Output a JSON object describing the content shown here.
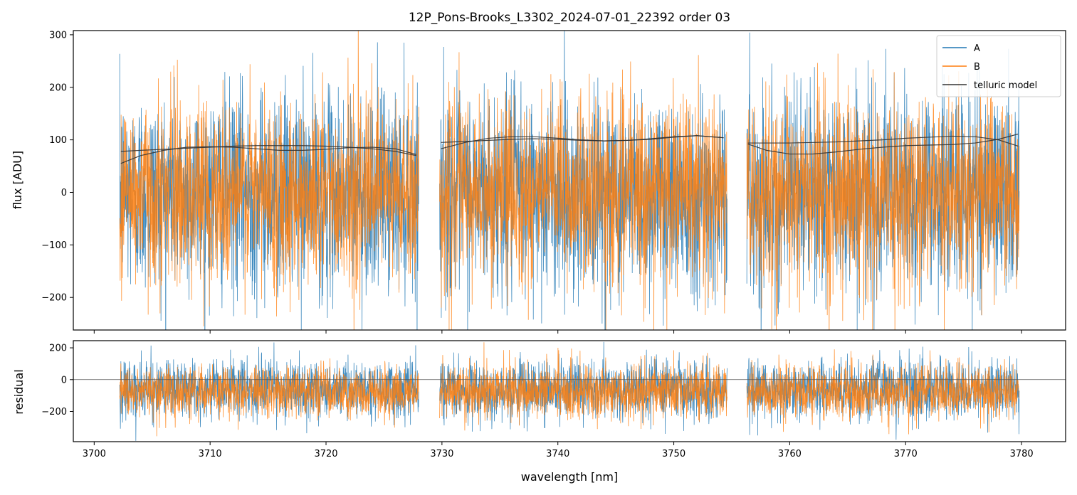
{
  "chart_data": {
    "type": "line",
    "title": "12P_Pons-Brooks_L3302_2024-07-01_22392  order 03",
    "xlabel": "wavelength [nm]",
    "xlim": [
      3698.2,
      3783.8
    ],
    "xticks": [
      3700,
      3710,
      3720,
      3730,
      3740,
      3750,
      3760,
      3770,
      3780
    ],
    "legend": {
      "position": "top-right",
      "entries": [
        "A",
        "B",
        "telluric model"
      ]
    },
    "colors": {
      "A": "#1f77b4",
      "B": "#ff7f0e",
      "telluric": "#333333",
      "zero_line": "#555555"
    },
    "segments": [
      {
        "x_start": 3702.2,
        "x_end": 3728.0
      },
      {
        "x_start": 3729.8,
        "x_end": 3754.6
      },
      {
        "x_start": 3756.3,
        "x_end": 3779.8
      }
    ],
    "panels": [
      {
        "name": "flux",
        "ylabel": "flux [ADU]",
        "ylim": [
          -262,
          308
        ],
        "yticks": [
          -200,
          -100,
          0,
          100,
          200,
          300
        ],
        "series": [
          {
            "name": "A",
            "noise": {
              "center": 0,
              "std": 95,
              "clip": 308
            }
          },
          {
            "name": "B",
            "noise": {
              "center": 0,
              "std": 88,
              "clip": 308
            }
          }
        ],
        "telluric_model": [
          {
            "x": [
              3702.3,
              3704,
              3706,
              3708,
              3710,
              3712,
              3714,
              3716,
              3718,
              3720,
              3722,
              3724,
              3726,
              3727.8
            ],
            "y1": [
              55,
              70,
              80,
              86,
              87,
              86,
              83,
              80,
              80,
              82,
              85,
              86,
              83,
              72
            ],
            "y2": [
              78,
              80,
              82,
              84,
              86,
              88,
              89,
              89,
              89,
              88,
              86,
              83,
              78,
              70
            ]
          },
          {
            "x": [
              3729.9,
              3732,
              3734,
              3736,
              3738,
              3740,
              3742,
              3744,
              3746,
              3748,
              3750,
              3752,
              3754.3
            ],
            "y1": [
              83,
              95,
              103,
              106,
              106,
              103,
              100,
              98,
              99,
              101,
              105,
              108,
              104
            ],
            "y2": [
              95,
              97,
              99,
              101,
              102,
              101,
              99,
              98,
              99,
              102,
              106,
              108,
              104
            ]
          },
          {
            "x": [
              3756.4,
              3758,
              3760,
              3762,
              3764,
              3766,
              3768,
              3770,
              3772,
              3774,
              3776,
              3778,
              3779.7
            ],
            "y1": [
              92,
              80,
              73,
              73,
              77,
              82,
              86,
              89,
              90,
              91,
              94,
              101,
              111
            ],
            "y2": [
              94,
              94,
              94,
              95,
              96,
              98,
              100,
              103,
              105,
              107,
              106,
              100,
              88
            ]
          }
        ]
      },
      {
        "name": "residual",
        "ylabel": "residual",
        "ylim": [
          -390,
          245
        ],
        "yticks": [
          -200,
          0,
          200
        ],
        "zero_line": 0,
        "series": [
          {
            "name": "A",
            "noise": {
              "center": -60,
              "std": 90,
              "clip": 245
            }
          },
          {
            "name": "B",
            "noise": {
              "center": -75,
              "std": 82,
              "clip": 245
            }
          }
        ]
      }
    ]
  }
}
